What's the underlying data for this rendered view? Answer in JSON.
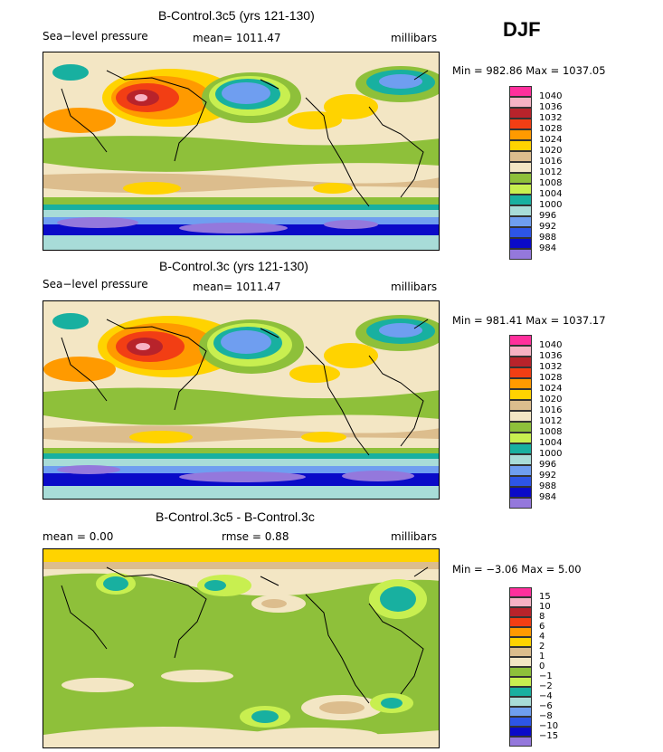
{
  "season": "DJF",
  "panels": [
    {
      "title": "B-Control.3c5 (yrs 121-130)",
      "left_label": "Sea−level pressure",
      "center_label": "mean=  1011.47",
      "right_label": "millibars",
      "minmax": "Min = 982.86 Max = 1037.05",
      "legend_labels": [
        "1040",
        "1036",
        "1032",
        "1028",
        "1024",
        "1020",
        "1016",
        "1012",
        "1008",
        "1004",
        "1000",
        "996",
        "992",
        "988",
        "984"
      ]
    },
    {
      "title": "B-Control.3c (yrs 121-130)",
      "left_label": "Sea−level pressure",
      "center_label": "mean=  1011.47",
      "right_label": "millibars",
      "minmax": "Min = 981.41 Max = 1037.17",
      "legend_labels": [
        "1040",
        "1036",
        "1032",
        "1028",
        "1024",
        "1020",
        "1016",
        "1012",
        "1008",
        "1004",
        "1000",
        "996",
        "992",
        "988",
        "984"
      ]
    },
    {
      "title": "B-Control.3c5 - B-Control.3c",
      "left_label": "mean =    0.00",
      "center_label": "rmse =     0.88",
      "right_label": "millibars",
      "minmax": "Min =   −3.06 Max =     5.00",
      "legend_labels": [
        "15",
        "10",
        "8",
        "6",
        "4",
        "2",
        "1",
        "0",
        "−1",
        "−2",
        "−4",
        "−6",
        "−8",
        "−10",
        "−15"
      ]
    }
  ],
  "colors": {
    "c1040": "#ff2f9c",
    "c1036": "#f7b2c4",
    "c1032": "#b8232b",
    "c1028": "#f23e14",
    "c1024": "#ff9a00",
    "c1020": "#ffd300",
    "c1016": "#dcbd8d",
    "c1012": "#f3e6c4",
    "c1008": "#8ec03a",
    "c1004": "#c8ef50",
    "c1000": "#18b0a0",
    "c996": "#a8dcd8",
    "c992": "#6f9ef0",
    "c988": "#2d55e6",
    "c984": "#0a0ac8",
    "c980": "#9478dc"
  },
  "icons": [
    "coastline-outline-icon"
  ]
}
